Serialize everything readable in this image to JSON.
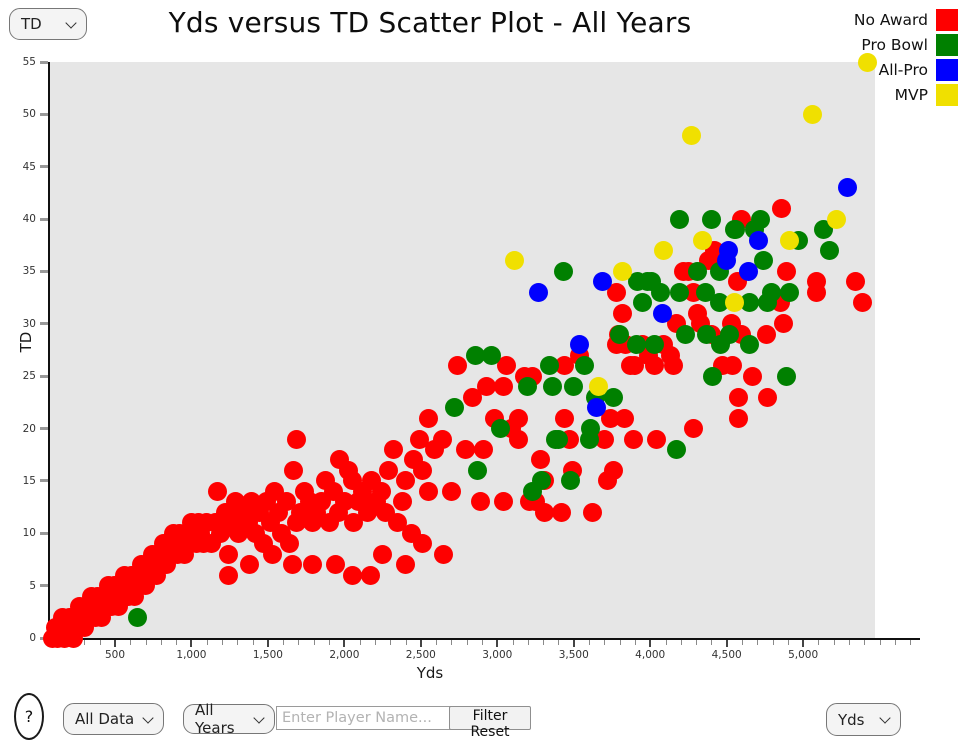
{
  "header": {
    "y_axis_select": "TD",
    "title": "Yds versus TD Scatter Plot - All Years"
  },
  "footer": {
    "help_label": "?",
    "data_filter": "All Data",
    "year_filter": "All Years",
    "player_placeholder": "Enter Player Name...",
    "filter_reset_label": "Filter Reset",
    "x_axis_select": "Yds"
  },
  "chart_data": {
    "type": "scatter",
    "title": "Yds versus TD Scatter Plot - All Years",
    "xlabel": "Yds",
    "ylabel": "TD",
    "xlim": [
      75,
      5470
    ],
    "ylim": [
      0,
      55
    ],
    "grid": false,
    "legend_position": "top-right",
    "x_tick_values": [
      500,
      1000,
      1500,
      2000,
      2500,
      3000,
      3500,
      4000,
      4500,
      5000
    ],
    "x_tick_labels": [
      "500",
      "1,000",
      "1,500",
      "2,000",
      "2,500",
      "3,000",
      "3,500",
      "4,000",
      "4,500",
      "5,000"
    ],
    "x_minor_tick_step": 100,
    "x_minor_tick_max": 5700,
    "y_tick_values": [
      0,
      5,
      10,
      15,
      20,
      25,
      30,
      35,
      40,
      45,
      50,
      55
    ],
    "legend": [
      {
        "label": "No Award",
        "color": "#fe0000"
      },
      {
        "label": "Pro Bowl",
        "color": "#008000"
      },
      {
        "label": "All-Pro",
        "color": "#0000fe"
      },
      {
        "label": "MVP",
        "color": "#f0e000"
      }
    ],
    "series": [
      {
        "name": "No Award",
        "color": "#fe0000",
        "points": [
          [
            90,
            0
          ],
          [
            110,
            1
          ],
          [
            125,
            0
          ],
          [
            140,
            1
          ],
          [
            155,
            2
          ],
          [
            170,
            0
          ],
          [
            185,
            1
          ],
          [
            200,
            2
          ],
          [
            215,
            1
          ],
          [
            230,
            0
          ],
          [
            245,
            2
          ],
          [
            260,
            1
          ],
          [
            270,
            3
          ],
          [
            285,
            2
          ],
          [
            300,
            1
          ],
          [
            315,
            3
          ],
          [
            330,
            2
          ],
          [
            345,
            4
          ],
          [
            355,
            3
          ],
          [
            370,
            2
          ],
          [
            385,
            4
          ],
          [
            400,
            3
          ],
          [
            410,
            2
          ],
          [
            425,
            4
          ],
          [
            440,
            3
          ],
          [
            455,
            5
          ],
          [
            465,
            4
          ],
          [
            480,
            3
          ],
          [
            495,
            5
          ],
          [
            510,
            4
          ],
          [
            520,
            3
          ],
          [
            535,
            5
          ],
          [
            550,
            4
          ],
          [
            565,
            6
          ],
          [
            575,
            5
          ],
          [
            590,
            4
          ],
          [
            605,
            6
          ],
          [
            620,
            5
          ],
          [
            630,
            4
          ],
          [
            645,
            6
          ],
          [
            660,
            5
          ],
          [
            675,
            7
          ],
          [
            690,
            6
          ],
          [
            700,
            5
          ],
          [
            715,
            7
          ],
          [
            730,
            6
          ],
          [
            745,
            8
          ],
          [
            755,
            7
          ],
          [
            770,
            6
          ],
          [
            785,
            8
          ],
          [
            800,
            7
          ],
          [
            815,
            9
          ],
          [
            825,
            8
          ],
          [
            840,
            7
          ],
          [
            855,
            9
          ],
          [
            870,
            8
          ],
          [
            885,
            10
          ],
          [
            895,
            9
          ],
          [
            910,
            8
          ],
          [
            925,
            10
          ],
          [
            940,
            9
          ],
          [
            955,
            8
          ],
          [
            970,
            10
          ],
          [
            985,
            9
          ],
          [
            1000,
            11
          ],
          [
            1015,
            10
          ],
          [
            1030,
            9
          ],
          [
            1045,
            11
          ],
          [
            1060,
            10
          ],
          [
            1080,
            9
          ],
          [
            1100,
            11
          ],
          [
            1130,
            9
          ],
          [
            1155,
            11
          ],
          [
            1170,
            14
          ],
          [
            1190,
            10
          ],
          [
            1220,
            12
          ],
          [
            1240,
            6
          ],
          [
            1240,
            8
          ],
          [
            1265,
            11
          ],
          [
            1290,
            13
          ],
          [
            1310,
            10
          ],
          [
            1340,
            12
          ],
          [
            1370,
            11
          ],
          [
            1380,
            7
          ],
          [
            1390,
            13
          ],
          [
            1420,
            10
          ],
          [
            1445,
            12
          ],
          [
            1470,
            9
          ],
          [
            1490,
            13
          ],
          [
            1520,
            11
          ],
          [
            1530,
            8
          ],
          [
            1545,
            14
          ],
          [
            1570,
            12
          ],
          [
            1590,
            10
          ],
          [
            1620,
            13
          ],
          [
            1640,
            9
          ],
          [
            1660,
            7
          ],
          [
            1665,
            16
          ],
          [
            1690,
            19
          ],
          [
            1690,
            11
          ],
          [
            1710,
            12
          ],
          [
            1740,
            14
          ],
          [
            1770,
            13
          ],
          [
            1790,
            7
          ],
          [
            1790,
            11
          ],
          [
            1820,
            12
          ],
          [
            1850,
            13
          ],
          [
            1875,
            15
          ],
          [
            1900,
            11
          ],
          [
            1930,
            14
          ],
          [
            1940,
            7
          ],
          [
            1960,
            12
          ],
          [
            1970,
            17
          ],
          [
            2000,
            13
          ],
          [
            2030,
            16
          ],
          [
            2050,
            6
          ],
          [
            2050,
            15
          ],
          [
            2060,
            11
          ],
          [
            2090,
            13
          ],
          [
            2120,
            14
          ],
          [
            2150,
            12
          ],
          [
            2170,
            6
          ],
          [
            2180,
            15
          ],
          [
            2210,
            13
          ],
          [
            2240,
            14
          ],
          [
            2250,
            8
          ],
          [
            2270,
            12
          ],
          [
            2290,
            16
          ],
          [
            2320,
            18
          ],
          [
            2350,
            11
          ],
          [
            2380,
            13
          ],
          [
            2400,
            7
          ],
          [
            2400,
            15
          ],
          [
            2440,
            10
          ],
          [
            2450,
            17
          ],
          [
            2490,
            19
          ],
          [
            2510,
            9
          ],
          [
            2510,
            16
          ],
          [
            2550,
            14
          ],
          [
            2550,
            21
          ],
          [
            2590,
            18
          ],
          [
            2640,
            19
          ],
          [
            2650,
            8
          ],
          [
            2700,
            14
          ],
          [
            2740,
            26
          ],
          [
            2790,
            18
          ],
          [
            2840,
            23
          ],
          [
            2890,
            13
          ],
          [
            2910,
            18
          ],
          [
            2930,
            24
          ],
          [
            2980,
            21
          ],
          [
            3040,
            13
          ],
          [
            3040,
            24
          ],
          [
            3060,
            26
          ],
          [
            3090,
            20
          ],
          [
            3140,
            19
          ],
          [
            3140,
            21
          ],
          [
            3180,
            25
          ],
          [
            3210,
            13
          ],
          [
            3230,
            25
          ],
          [
            3250,
            13
          ],
          [
            3280,
            17
          ],
          [
            3310,
            12
          ],
          [
            3310,
            15
          ],
          [
            3420,
            12
          ],
          [
            3440,
            21
          ],
          [
            3440,
            26
          ],
          [
            3470,
            19
          ],
          [
            3490,
            16
          ],
          [
            3540,
            27
          ],
          [
            3620,
            12
          ],
          [
            3700,
            19
          ],
          [
            3720,
            15
          ],
          [
            3740,
            21
          ],
          [
            3760,
            16
          ],
          [
            3780,
            28
          ],
          [
            3780,
            33
          ],
          [
            3790,
            29
          ],
          [
            3820,
            31
          ],
          [
            3830,
            21
          ],
          [
            3840,
            28
          ],
          [
            3870,
            26
          ],
          [
            3890,
            19
          ],
          [
            3900,
            26
          ],
          [
            3950,
            28
          ],
          [
            3990,
            27
          ],
          [
            4030,
            26
          ],
          [
            4040,
            19
          ],
          [
            4090,
            28
          ],
          [
            4130,
            27
          ],
          [
            4150,
            26
          ],
          [
            4170,
            30
          ],
          [
            4220,
            35
          ],
          [
            4250,
            35
          ],
          [
            4280,
            20
          ],
          [
            4280,
            33
          ],
          [
            4310,
            31
          ],
          [
            4330,
            30
          ],
          [
            4380,
            36
          ],
          [
            4400,
            29
          ],
          [
            4420,
            37
          ],
          [
            4470,
            26
          ],
          [
            4530,
            30
          ],
          [
            4540,
            26
          ],
          [
            4570,
            34
          ],
          [
            4580,
            21
          ],
          [
            4580,
            23
          ],
          [
            4600,
            29
          ],
          [
            4600,
            40
          ],
          [
            4670,
            25
          ],
          [
            4760,
            29
          ],
          [
            4770,
            23
          ],
          [
            4850,
            32
          ],
          [
            4860,
            41
          ],
          [
            4870,
            30
          ],
          [
            4890,
            35
          ],
          [
            5090,
            33
          ],
          [
            5090,
            34
          ],
          [
            5340,
            34
          ],
          [
            5390,
            32
          ]
        ]
      },
      {
        "name": "Pro Bowl",
        "color": "#008000",
        "points": [
          [
            650,
            2
          ],
          [
            2720,
            22
          ],
          [
            2860,
            27
          ],
          [
            2870,
            16
          ],
          [
            2960,
            27
          ],
          [
            3020,
            20
          ],
          [
            3200,
            24
          ],
          [
            3230,
            14
          ],
          [
            3290,
            15
          ],
          [
            3340,
            26
          ],
          [
            3360,
            24
          ],
          [
            3380,
            19
          ],
          [
            3400,
            19
          ],
          [
            3430,
            35
          ],
          [
            3480,
            15
          ],
          [
            3500,
            24
          ],
          [
            3570,
            26
          ],
          [
            3600,
            19
          ],
          [
            3610,
            20
          ],
          [
            3640,
            23
          ],
          [
            3760,
            23
          ],
          [
            3800,
            29
          ],
          [
            3910,
            28
          ],
          [
            3920,
            34
          ],
          [
            3950,
            32
          ],
          [
            3980,
            34
          ],
          [
            4010,
            34
          ],
          [
            4030,
            28
          ],
          [
            4070,
            33
          ],
          [
            4170,
            18
          ],
          [
            4190,
            33
          ],
          [
            4190,
            40
          ],
          [
            4230,
            29
          ],
          [
            4310,
            35
          ],
          [
            4360,
            33
          ],
          [
            4370,
            29
          ],
          [
            4400,
            40
          ],
          [
            4410,
            25
          ],
          [
            4450,
            32
          ],
          [
            4450,
            35
          ],
          [
            4460,
            28
          ],
          [
            4520,
            29
          ],
          [
            4550,
            39
          ],
          [
            4560,
            39
          ],
          [
            4650,
            28
          ],
          [
            4650,
            32
          ],
          [
            4680,
            39
          ],
          [
            4720,
            40
          ],
          [
            4740,
            36
          ],
          [
            4770,
            32
          ],
          [
            4790,
            33
          ],
          [
            4890,
            25
          ],
          [
            4910,
            33
          ],
          [
            4970,
            38
          ],
          [
            5130,
            39
          ],
          [
            5170,
            37
          ]
        ]
      },
      {
        "name": "All-Pro",
        "color": "#0000fe",
        "points": [
          [
            3270,
            33
          ],
          [
            3540,
            28
          ],
          [
            3650,
            22
          ],
          [
            3690,
            34
          ],
          [
            4080,
            31
          ],
          [
            4500,
            36
          ],
          [
            4510,
            37
          ],
          [
            4640,
            35
          ],
          [
            4710,
            38
          ],
          [
            5290,
            43
          ]
        ]
      },
      {
        "name": "MVP",
        "color": "#f0e000",
        "points": [
          [
            3110,
            36
          ],
          [
            3660,
            24
          ],
          [
            3820,
            35
          ],
          [
            4090,
            37
          ],
          [
            4270,
            48
          ],
          [
            4340,
            38
          ],
          [
            4550,
            32
          ],
          [
            4910,
            38
          ],
          [
            5060,
            50
          ],
          [
            5220,
            40
          ],
          [
            5420,
            55
          ]
        ]
      }
    ]
  }
}
